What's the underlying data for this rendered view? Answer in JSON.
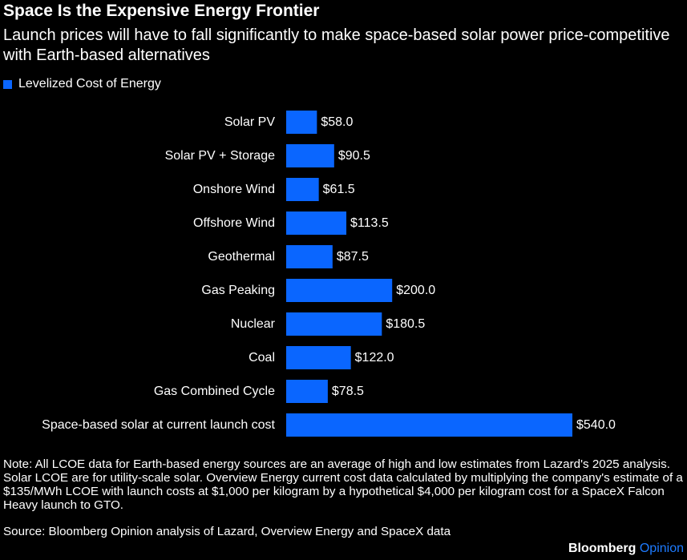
{
  "header": {
    "title": "Space Is the Expensive Energy Frontier",
    "subtitle": "Launch prices will have to fall significantly to make space-based solar power price-competitive with Earth-based alternatives"
  },
  "legend": {
    "label": "Levelized Cost of Energy"
  },
  "colors": {
    "bar": "#0a66ff",
    "background": "#000000",
    "text": "#ffffff",
    "brand_accent": "#1e7bff"
  },
  "chart_data": {
    "type": "bar",
    "orientation": "horizontal",
    "categories": [
      "Solar PV",
      "Solar PV + Storage",
      "Onshore Wind",
      "Offshore Wind",
      "Geothermal",
      "Gas Peaking",
      "Nuclear",
      "Coal",
      "Gas Combined Cycle",
      "Space-based solar at current launch cost"
    ],
    "values": [
      58.0,
      90.5,
      61.5,
      113.5,
      87.5,
      200.0,
      180.5,
      122.0,
      78.5,
      540.0
    ],
    "value_labels": [
      "$58.0",
      "$90.5",
      "$61.5",
      "$113.5",
      "$87.5",
      "$200.0",
      "$180.5",
      "$122.0",
      "$78.5",
      "$540.0"
    ],
    "series": [
      {
        "name": "Levelized Cost of Energy",
        "values": [
          58.0,
          90.5,
          61.5,
          113.5,
          87.5,
          200.0,
          180.5,
          122.0,
          78.5,
          540.0
        ]
      }
    ],
    "xlim": [
      0,
      540
    ],
    "grid": false,
    "legend_position": "top-left"
  },
  "footer": {
    "note": "Note: All LCOE data for Earth-based energy sources are an average of high and low estimates from Lazard's 2025 analysis. Solar LCOE are for utility-scale solar. Overview Energy current cost data calculated by multiplying the company's estimate of a $135/MWh LCOE with launch costs at $1,000 per kilogram by a hypothetical $4,000 per kilogram cost for a SpaceX Falcon Heavy launch to GTO.",
    "source": "Source: Bloomberg Opinion analysis of Lazard, Overview Energy and SpaceX data",
    "brand_primary": "Bloomberg",
    "brand_secondary": "Opinion"
  }
}
